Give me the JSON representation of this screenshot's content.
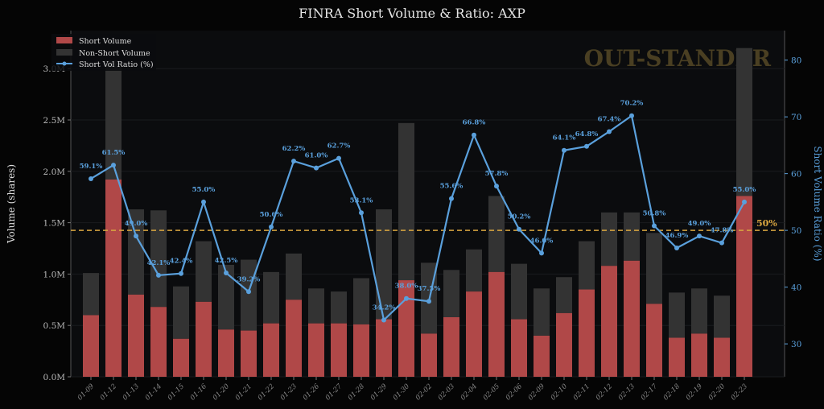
{
  "chart_data": {
    "type": "bar",
    "title": "FINRA Short Volume & Ratio: AXP",
    "xlabel": "",
    "ylabel": "Volume (shares)",
    "y2label": "Short Volume Ratio (%)",
    "ylim": [
      0,
      3.37
    ],
    "y2lim": [
      24.2,
      85.2
    ],
    "yticks": [
      "0.0M",
      "0.5M",
      "1.0M",
      "1.5M",
      "2.0M",
      "2.5M",
      "3.0M"
    ],
    "y2ticks": [
      "30",
      "40",
      "50",
      "60",
      "70",
      "80"
    ],
    "legend": [
      "Short Volume",
      "Non-Short Volume",
      "Short Vol Ratio (%)"
    ],
    "legend_position": "top-left",
    "watermark": "OUT-STANDER",
    "reference_line": {
      "value": 50,
      "label": "50%"
    },
    "categories": [
      "01-09",
      "01-12",
      "01-13",
      "01-14",
      "01-15",
      "01-16",
      "01-20",
      "01-21",
      "01-22",
      "01-23",
      "01-26",
      "01-27",
      "01-28",
      "01-29",
      "01-30",
      "02-02",
      "02-03",
      "02-04",
      "02-05",
      "02-06",
      "02-09",
      "02-10",
      "02-11",
      "02-12",
      "02-13",
      "02-17",
      "02-18",
      "02-19",
      "02-20",
      "02-23"
    ],
    "series": [
      {
        "name": "Short Volume",
        "unit": "M shares",
        "values": [
          0.6,
          1.92,
          0.8,
          0.68,
          0.37,
          0.73,
          0.46,
          0.45,
          0.52,
          0.75,
          0.52,
          0.52,
          0.51,
          0.56,
          0.94,
          0.42,
          0.58,
          0.83,
          1.02,
          0.56,
          0.4,
          0.62,
          0.85,
          1.08,
          1.13,
          0.71,
          0.38,
          0.42,
          0.38,
          1.76
        ]
      },
      {
        "name": "Total Volume",
        "unit": "M shares",
        "values": [
          1.01,
          3.08,
          1.63,
          1.62,
          0.88,
          1.32,
          1.09,
          1.14,
          1.02,
          1.2,
          0.86,
          0.83,
          0.96,
          1.63,
          2.47,
          1.11,
          1.04,
          1.24,
          1.76,
          1.1,
          0.86,
          0.97,
          1.32,
          1.6,
          1.6,
          1.4,
          0.82,
          0.86,
          0.79,
          3.2
        ]
      },
      {
        "name": "Short Vol Ratio (%)",
        "values": [
          59.1,
          61.5,
          49.0,
          42.1,
          42.4,
          55.0,
          42.5,
          39.2,
          50.6,
          62.2,
          61.0,
          62.7,
          53.1,
          34.2,
          38.0,
          37.5,
          55.6,
          66.8,
          57.8,
          50.2,
          46.0,
          64.1,
          64.8,
          67.4,
          70.2,
          50.8,
          46.9,
          49.0,
          47.8,
          55.0
        ]
      }
    ],
    "ratio_labels": [
      "59.1%",
      "61.5%",
      "49.0%",
      "42.1%",
      "42.4%",
      "55.0%",
      "42.5%",
      "39.2%",
      "50.6%",
      "62.2%",
      "61.0%",
      "62.7%",
      "53.1%",
      "34.2%",
      "38.0%",
      "37.5%",
      "55.6%",
      "66.8%",
      "57.8%",
      "50.2%",
      "46.0%",
      "64.1%",
      "64.8%",
      "67.4%",
      "70.2%",
      "50.8%",
      "46.9%",
      "49.0%",
      "47.8%",
      "55.0%"
    ],
    "colors": {
      "short": "#b04848",
      "nonshort": "#333333",
      "ratio": "#5aa0dc",
      "ref": "#d9a640",
      "watermark": "#4a3f22"
    }
  }
}
